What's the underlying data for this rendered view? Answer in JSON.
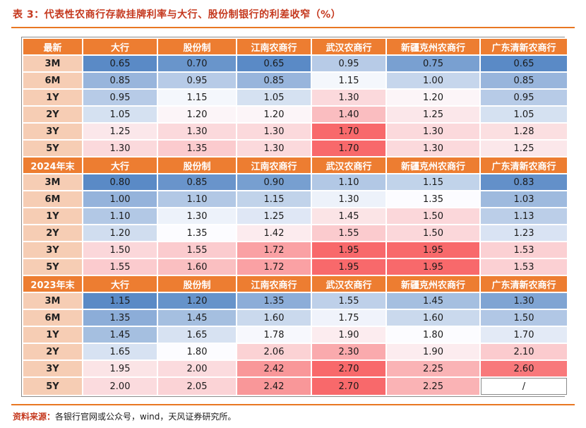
{
  "page": {
    "title": "表 3：代表性农商行存款挂牌利率与大行、股份制银行的利差收窄（%）",
    "source_label": "资料来源：",
    "source_text": "各银行官网或公众号，wind，天风证券研究所。"
  },
  "colors": {
    "title": "#c5391f",
    "rule": "#e87722",
    "header_bg": "#ed7d31",
    "header_text": "#ffffff",
    "row_label_bg": "#f6cdb4"
  },
  "chart_data": {
    "type": "heatmap",
    "title": "表 3：代表性农商行存款挂牌利率与大行、股份制银行的利差收窄（%）",
    "unit": "%",
    "column_headers": [
      "大行",
      "股份制",
      "江南农商行",
      "武汉农商行",
      "新疆克州农商行",
      "广东清新农商行"
    ],
    "row_labels": [
      "3M",
      "6M",
      "1Y",
      "2Y",
      "3Y",
      "5Y"
    ],
    "na_value": "/",
    "colorscale": {
      "low": "#5A8AC6",
      "mid": "#FCFCFF",
      "high": "#F8696B",
      "note": "diverging blue-white-red scale applied per section, midpoint at median"
    },
    "sections": [
      {
        "name": "最新",
        "rows": [
          [
            0.65,
            0.7,
            0.65,
            0.95,
            0.75,
            0.65
          ],
          [
            0.85,
            0.95,
            0.85,
            1.15,
            1.0,
            0.85
          ],
          [
            0.95,
            1.15,
            1.05,
            1.3,
            1.2,
            0.95
          ],
          [
            1.05,
            1.2,
            1.2,
            1.4,
            1.25,
            1.05
          ],
          [
            1.25,
            1.3,
            1.3,
            1.7,
            1.3,
            1.28
          ],
          [
            1.3,
            1.35,
            1.3,
            1.7,
            1.3,
            1.25
          ]
        ]
      },
      {
        "name": "2024年末",
        "rows": [
          [
            0.8,
            0.85,
            0.9,
            1.1,
            1.15,
            0.83
          ],
          [
            1.0,
            1.1,
            1.15,
            1.3,
            1.35,
            1.03
          ],
          [
            1.1,
            1.3,
            1.25,
            1.45,
            1.5,
            1.13
          ],
          [
            1.2,
            1.35,
            1.42,
            1.55,
            1.5,
            1.23
          ],
          [
            1.5,
            1.55,
            1.72,
            1.95,
            1.95,
            1.53
          ],
          [
            1.55,
            1.6,
            1.72,
            1.95,
            1.95,
            1.53
          ]
        ]
      },
      {
        "name": "2023年末",
        "rows": [
          [
            1.15,
            1.2,
            1.35,
            1.55,
            1.45,
            1.3
          ],
          [
            1.35,
            1.45,
            1.6,
            1.75,
            1.6,
            1.5
          ],
          [
            1.45,
            1.65,
            1.78,
            1.9,
            1.8,
            1.7
          ],
          [
            1.65,
            1.8,
            2.06,
            2.3,
            1.9,
            2.1
          ],
          [
            1.95,
            2.0,
            2.42,
            2.7,
            2.25,
            2.6
          ],
          [
            2.0,
            2.05,
            2.42,
            2.7,
            2.25,
            "/"
          ]
        ]
      }
    ]
  }
}
